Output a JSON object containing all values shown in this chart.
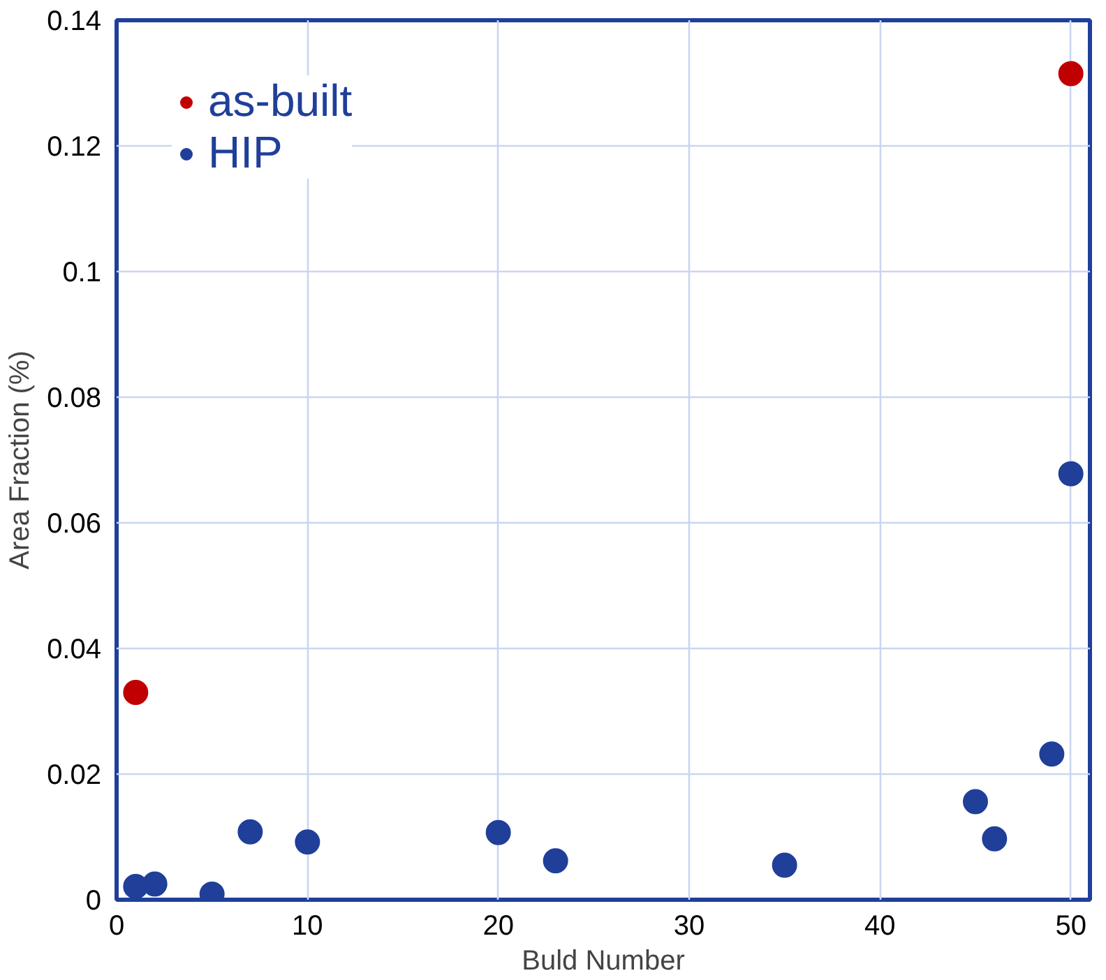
{
  "chart_data": {
    "type": "scatter",
    "xlabel": "Buld Number",
    "ylabel": "Area Fraction (%)",
    "xlim": [
      0,
      51
    ],
    "ylim": [
      0,
      0.14
    ],
    "xticks": [
      0,
      10,
      20,
      30,
      40,
      50
    ],
    "yticks": [
      0,
      0.02,
      0.04,
      0.06,
      0.08,
      0.1,
      0.12,
      0.14
    ],
    "grid": true,
    "legend": "top left",
    "marker": "circle",
    "series": [
      {
        "name": "as-built",
        "color": "#c00000",
        "x": [
          1,
          50
        ],
        "values": [
          0.033,
          0.1315
        ]
      },
      {
        "name": "HIP",
        "color": "#1f3f99",
        "x": [
          1,
          2,
          5,
          7,
          10,
          20,
          23,
          35,
          45,
          46,
          49,
          50
        ],
        "values": [
          0.0021,
          0.0025,
          0.0009,
          0.0108,
          0.0092,
          0.0107,
          0.0062,
          0.0055,
          0.0156,
          0.0097,
          0.0232,
          0.0678
        ]
      }
    ]
  }
}
